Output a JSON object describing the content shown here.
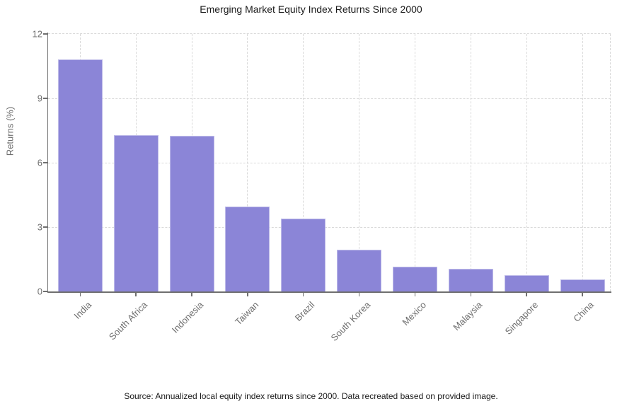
{
  "footer": "Source: Annualized local equity index returns since 2000. Data recreated based on provided image.",
  "chart_data": {
    "type": "bar",
    "title": "Emerging Market Equity Index Returns Since 2000",
    "xlabel": "",
    "ylabel": "Returns (%)",
    "categories": [
      "India",
      "South Africa",
      "Indonesia",
      "Taiwan",
      "Brazil",
      "South Korea",
      "Mexico",
      "Malaysia",
      "Singapore",
      "China"
    ],
    "values": [
      10.8,
      7.3,
      7.25,
      3.95,
      3.4,
      1.95,
      1.15,
      1.05,
      0.75,
      0.55
    ],
    "ylim": [
      0,
      12
    ],
    "yticks": [
      0,
      3,
      6,
      9,
      12
    ],
    "grid": true,
    "grid_style": "dashed",
    "legend": "none",
    "bar_color": "#8b85d7"
  },
  "colors": {
    "bar": "#8b85d7",
    "grid": "#d9d9d9",
    "axis": "#6f6f6f",
    "tick_label": "#6e6e6e",
    "title_text": "#1a1a1a",
    "footer_text": "#1a1a1a"
  }
}
